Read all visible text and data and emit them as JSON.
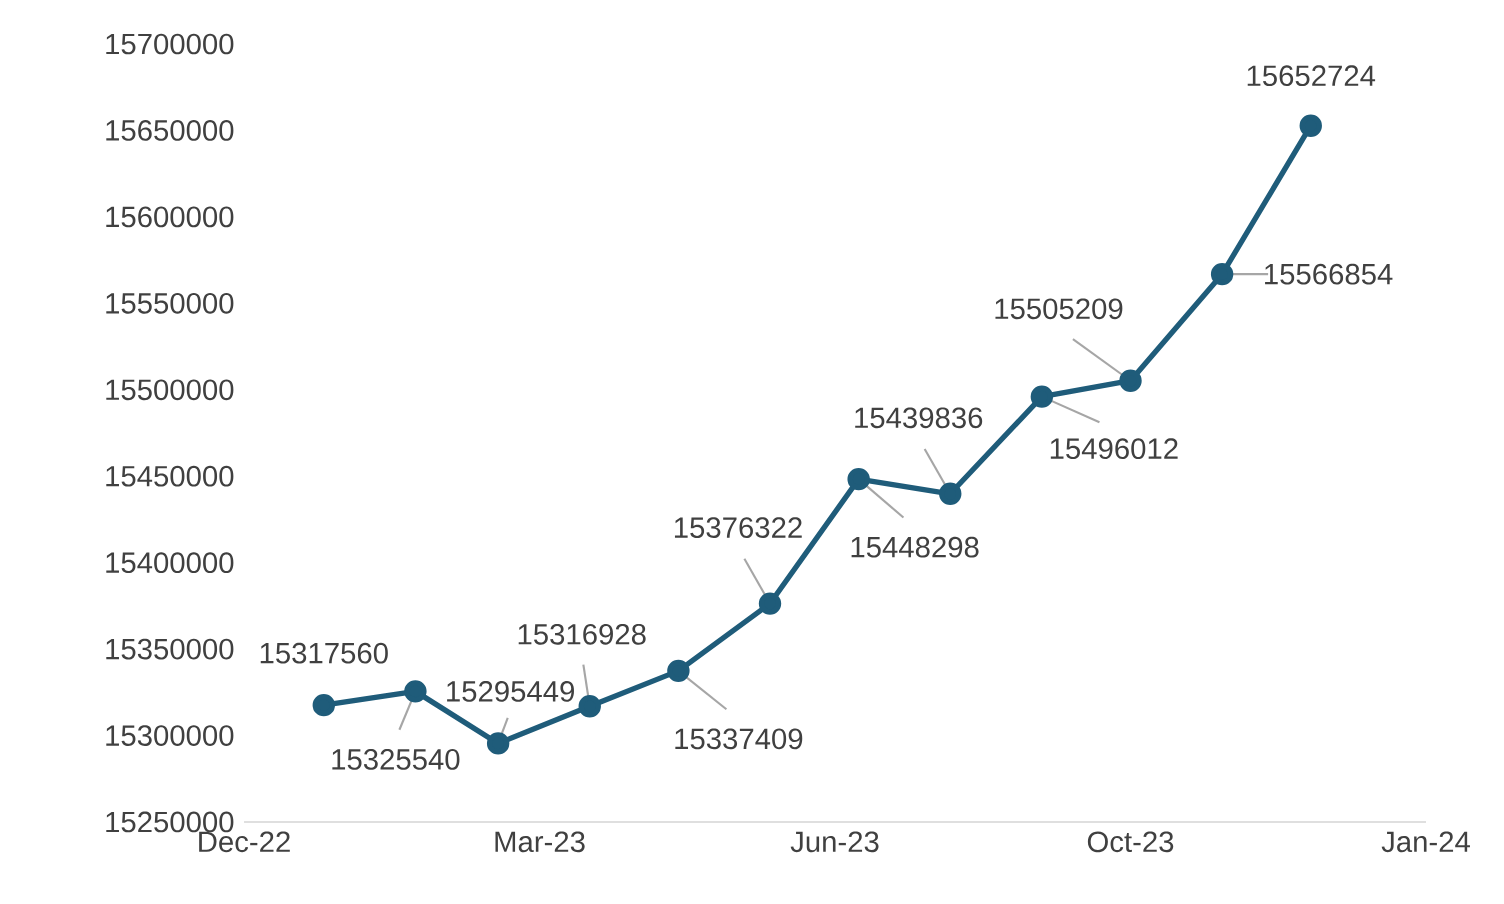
{
  "chart_data": {
    "type": "line",
    "x": [
      "2023-01-01",
      "2023-02-01",
      "2023-03-01",
      "2023-04-01",
      "2023-05-01",
      "2023-06-01",
      "2023-07-01",
      "2023-08-01",
      "2023-09-01",
      "2023-10-01",
      "2023-11-01",
      "2023-12-01"
    ],
    "series": [
      {
        "color": "#1f5c7a",
        "values": [
          15317560,
          15325540,
          15295449,
          15316928,
          15337409,
          15376322,
          15448298,
          15439836,
          15496012,
          15505209,
          15566854,
          15652724
        ]
      }
    ],
    "xlim": [
      "2022-12-05",
      "2024-01-09"
    ],
    "xticks": [
      {
        "value": "2022-12-05",
        "label": "Dec-22"
      },
      {
        "value": "2023-03-15",
        "label": "Mar-23"
      },
      {
        "value": "2023-06-23",
        "label": "Jun-23"
      },
      {
        "value": "2023-10-01",
        "label": "Oct-23"
      },
      {
        "value": "2024-01-09",
        "label": "Jan-24"
      }
    ],
    "ylim": [
      15250000,
      15700000
    ],
    "yticks": [
      15250000,
      15300000,
      15350000,
      15400000,
      15450000,
      15500000,
      15550000,
      15600000,
      15650000,
      15700000
    ],
    "grid": false,
    "marker": "circle",
    "line_style": "solid",
    "data_labels": true
  }
}
